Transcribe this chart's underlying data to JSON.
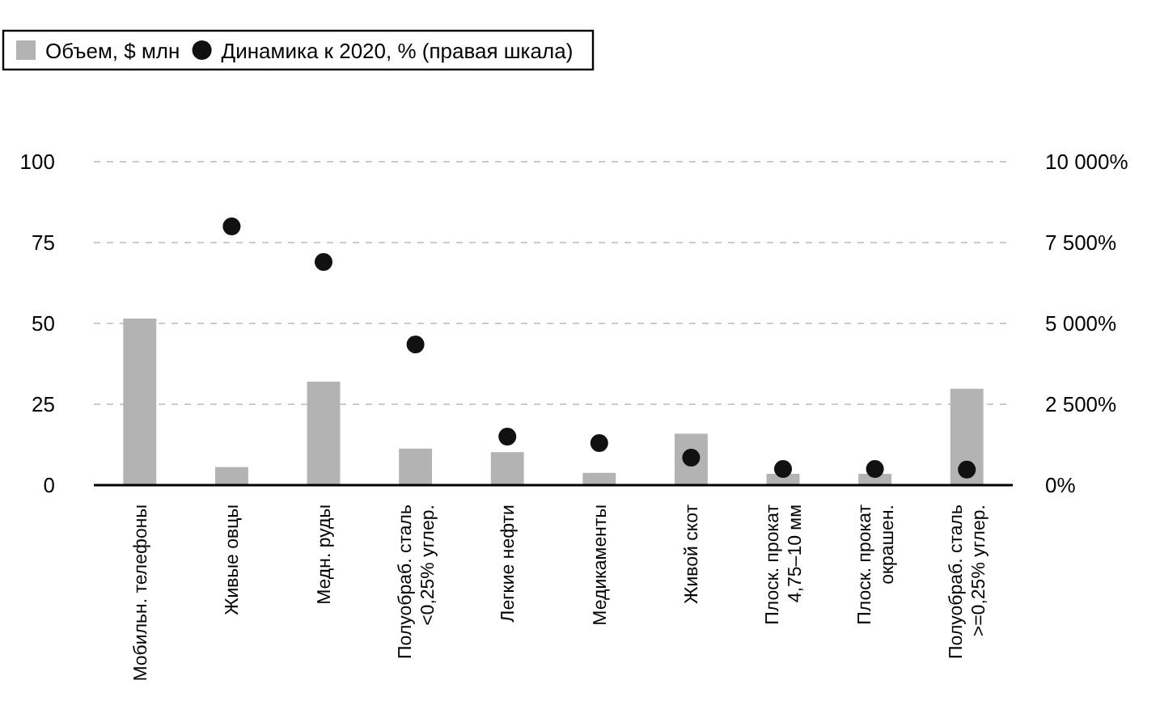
{
  "chart_data": {
    "type": "bar",
    "categories": [
      "Мобильн. телефоны",
      "Живые овцы",
      "Медн. руды",
      "Полуобраб. сталь\n<0,25% углер.",
      "Легкие нефти",
      "Медикаменты",
      "Живой скот",
      "Плоск. прокат\n4,75–10 мм",
      "Плоск. прокат\nокрашен.",
      "Полуобраб. сталь\n>=0,25% углер."
    ],
    "series": [
      {
        "name": "Объем, $ млн",
        "color": "#b3b3b3",
        "values": [
          51.5,
          5.6,
          32,
          11.3,
          10.2,
          3.8,
          15.9,
          3.5,
          3.5,
          29.8
        ]
      },
      {
        "name": "Динамика к 2020, % (правая шкала)",
        "type": "scatter",
        "axis": "y2",
        "color": "#111111",
        "values": [
          null,
          8000,
          6900,
          4350,
          1500,
          1300,
          850,
          500,
          500,
          480
        ]
      }
    ],
    "ylim": [
      0,
      100
    ],
    "yticks": [
      0,
      25,
      50,
      75,
      100
    ],
    "y2lim": [
      0,
      10000
    ],
    "y2ticks": [
      {
        "value": 0,
        "label": "0%"
      },
      {
        "value": 2500,
        "label": "2 500%"
      },
      {
        "value": 5000,
        "label": "5 000%"
      },
      {
        "value": 7500,
        "label": "7 500%"
      },
      {
        "value": 10000,
        "label": "10 000%"
      }
    ],
    "grid": "y",
    "legend": "top left",
    "marker": "circle"
  }
}
